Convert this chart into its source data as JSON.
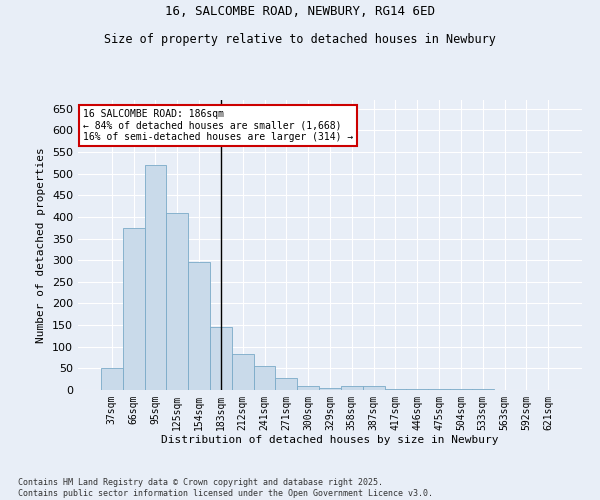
{
  "title_line1": "16, SALCOMBE ROAD, NEWBURY, RG14 6ED",
  "title_line2": "Size of property relative to detached houses in Newbury",
  "xlabel": "Distribution of detached houses by size in Newbury",
  "ylabel": "Number of detached properties",
  "categories": [
    "37sqm",
    "66sqm",
    "95sqm",
    "125sqm",
    "154sqm",
    "183sqm",
    "212sqm",
    "241sqm",
    "271sqm",
    "300sqm",
    "329sqm",
    "358sqm",
    "387sqm",
    "417sqm",
    "446sqm",
    "475sqm",
    "504sqm",
    "533sqm",
    "563sqm",
    "592sqm",
    "621sqm"
  ],
  "values": [
    50,
    375,
    520,
    410,
    295,
    145,
    83,
    55,
    27,
    10,
    5,
    10,
    10,
    2,
    3,
    2,
    2,
    2,
    1,
    1,
    1
  ],
  "bar_color": "#c9daea",
  "bar_edge_color": "#7aaac8",
  "marker_index": 5,
  "annotation_line1": "16 SALCOMBE ROAD: 186sqm",
  "annotation_line2": "← 84% of detached houses are smaller (1,668)",
  "annotation_line3": "16% of semi-detached houses are larger (314) →",
  "annotation_box_color": "white",
  "annotation_box_edge": "#cc0000",
  "ylim": [
    0,
    670
  ],
  "yticks": [
    0,
    50,
    100,
    150,
    200,
    250,
    300,
    350,
    400,
    450,
    500,
    550,
    600,
    650
  ],
  "background_color": "#e8eef7",
  "grid_color": "white",
  "footer_line1": "Contains HM Land Registry data © Crown copyright and database right 2025.",
  "footer_line2": "Contains public sector information licensed under the Open Government Licence v3.0."
}
